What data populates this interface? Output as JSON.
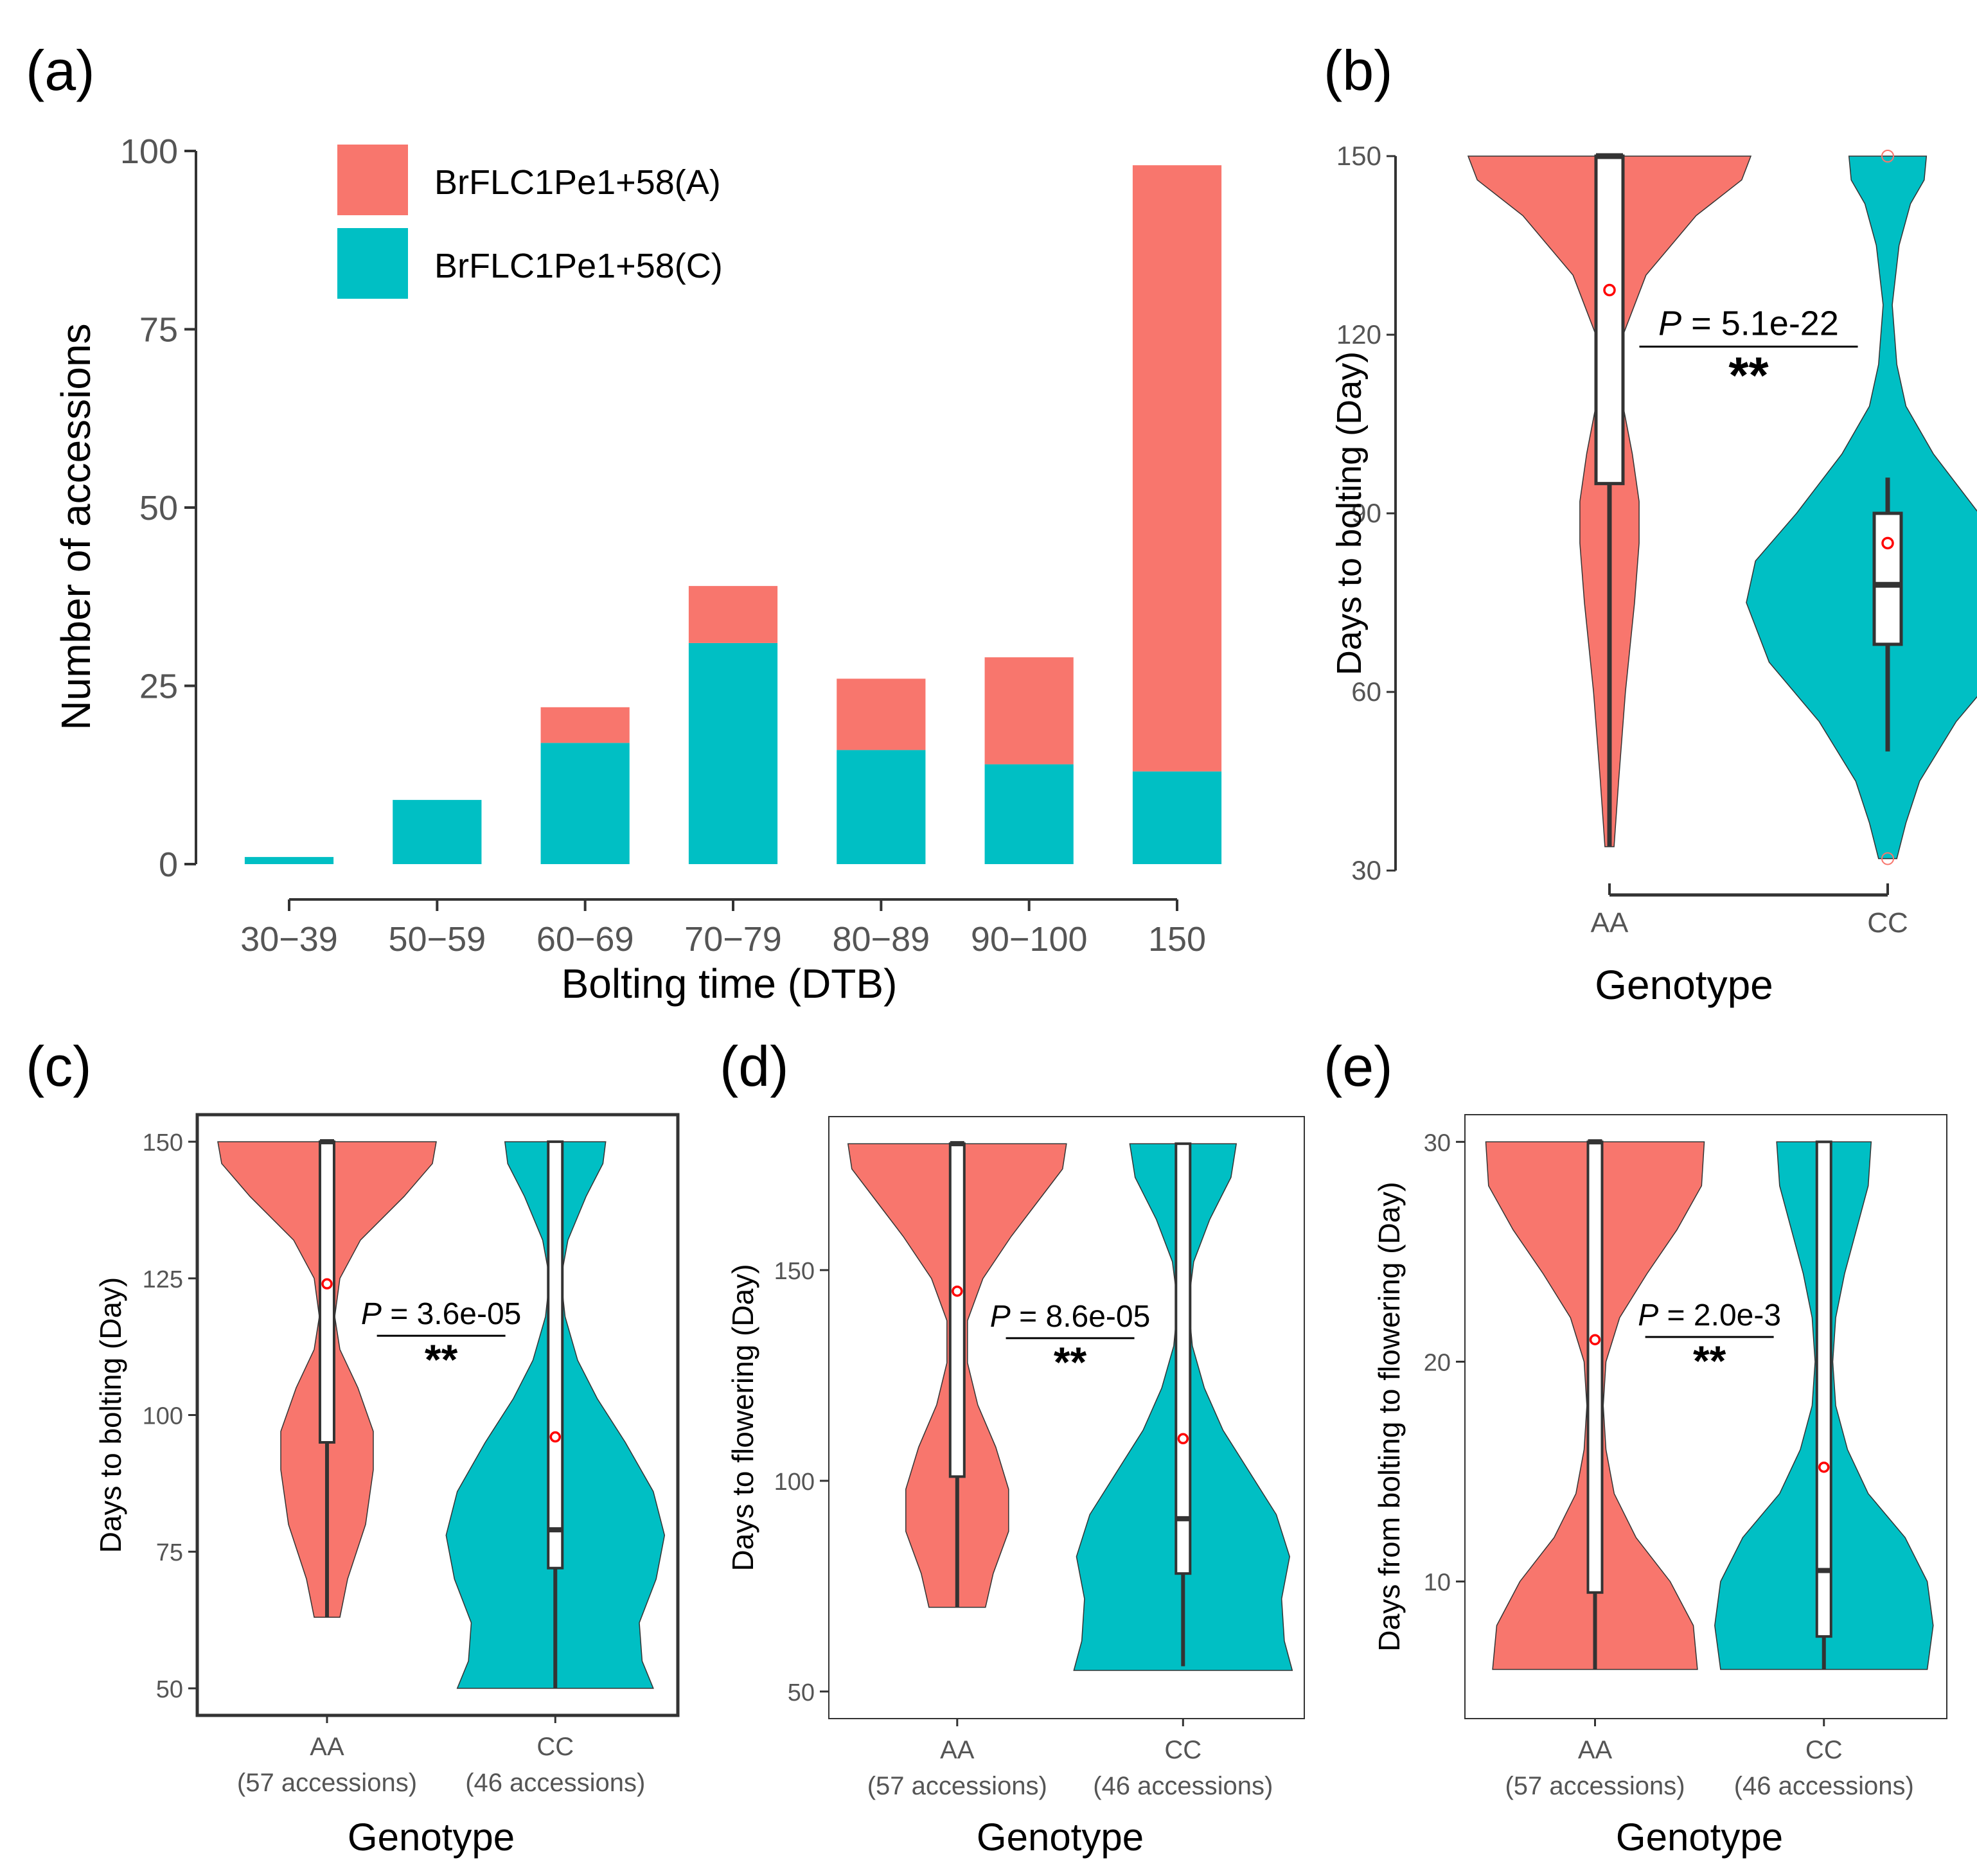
{
  "colors": {
    "A": "#F8766D",
    "C": "#00BFC4",
    "axis": "#333333",
    "tick": "#555555",
    "mean": "#FF0000"
  },
  "chart_data": [
    {
      "panel": "(a)",
      "type": "bar",
      "stacked": true,
      "xlabel": "Bolting time (DTB)",
      "ylabel": "Number of accessions",
      "ylim": [
        0,
        100
      ],
      "yticks": [
        0,
        25,
        50,
        75,
        100
      ],
      "categories": [
        "30−39",
        "50−59",
        "60−69",
        "70−79",
        "80−89",
        "90−100",
        "150"
      ],
      "series": [
        {
          "name": "BrFLC1Pe1+58(C)",
          "key": "C",
          "values": [
            1,
            9,
            17,
            31,
            16,
            14,
            13
          ]
        },
        {
          "name": "BrFLC1Pe1+58(A)",
          "key": "A",
          "values": [
            0,
            0,
            5,
            8,
            10,
            15,
            85
          ]
        }
      ],
      "legend_position": "top-left"
    },
    {
      "panel": "(b)",
      "type": "violin",
      "xlabel": "Genotype",
      "ylabel": "Days to bolting (Day)",
      "ylim": [
        30,
        150
      ],
      "yticks": [
        30,
        60,
        90,
        120,
        150
      ],
      "categories": [
        "AA",
        "CC"
      ],
      "groups": [
        {
          "name": "AA",
          "key": "A",
          "min": 34,
          "max": 150,
          "q1": 95,
          "median": 150,
          "q3": 150,
          "whisker_low": 34,
          "whisker_high": 150,
          "mean": 127.5,
          "density": [
            [
              34,
              0.02
            ],
            [
              45,
              0.04
            ],
            [
              60,
              0.07
            ],
            [
              75,
              0.11
            ],
            [
              85,
              0.13
            ],
            [
              92,
              0.13
            ],
            [
              100,
              0.1
            ],
            [
              110,
              0.05
            ],
            [
              120,
              0.06
            ],
            [
              130,
              0.16
            ],
            [
              140,
              0.38
            ],
            [
              146,
              0.58
            ],
            [
              150,
              0.62
            ]
          ]
        },
        {
          "name": "CC",
          "key": "C",
          "min": 32,
          "max": 150,
          "q1": 68,
          "median": 78,
          "q3": 90,
          "whisker_low": 50,
          "whisker_high": 96,
          "mean": 85,
          "outliers": [
            150,
            32
          ],
          "density": [
            [
              32,
              0.04
            ],
            [
              38,
              0.08
            ],
            [
              45,
              0.14
            ],
            [
              55,
              0.3
            ],
            [
              65,
              0.52
            ],
            [
              75,
              0.62
            ],
            [
              82,
              0.58
            ],
            [
              90,
              0.4
            ],
            [
              100,
              0.2
            ],
            [
              108,
              0.08
            ],
            [
              115,
              0.04
            ],
            [
              125,
              0.02
            ],
            [
              135,
              0.05
            ],
            [
              142,
              0.1
            ],
            [
              146,
              0.16
            ],
            [
              150,
              0.17
            ]
          ]
        }
      ],
      "p_value": "5.1e-22",
      "significance": "**",
      "p_label": "P"
    },
    {
      "panel": "(c)",
      "type": "violin",
      "xlabel": "Genotype",
      "ylabel": "Days to bolting (Day)",
      "ylim": [
        50,
        150
      ],
      "yticks": [
        50,
        75,
        100,
        125,
        150
      ],
      "categories": [
        "AA\n(57 accessions)",
        "CC\n(46 accessions)"
      ],
      "groups": [
        {
          "name": "AA",
          "key": "A",
          "min": 63,
          "max": 150,
          "q1": 95,
          "median": 150,
          "q3": 150,
          "whisker_low": 63,
          "whisker_high": 150,
          "mean": 124,
          "density": [
            [
              63,
              0.1
            ],
            [
              70,
              0.16
            ],
            [
              80,
              0.3
            ],
            [
              90,
              0.36
            ],
            [
              97,
              0.36
            ],
            [
              105,
              0.24
            ],
            [
              112,
              0.1
            ],
            [
              118,
              0.06
            ],
            [
              125,
              0.1
            ],
            [
              132,
              0.26
            ],
            [
              140,
              0.6
            ],
            [
              146,
              0.82
            ],
            [
              150,
              0.85
            ]
          ]
        },
        {
          "name": "CC",
          "key": "C",
          "min": 50,
          "max": 150,
          "q1": 72,
          "median": 79,
          "q3": 150,
          "whisker_low": 50,
          "whisker_high": 150,
          "mean": 96,
          "density": [
            [
              50,
              0.7
            ],
            [
              55,
              0.62
            ],
            [
              62,
              0.6
            ],
            [
              70,
              0.72
            ],
            [
              78,
              0.78
            ],
            [
              86,
              0.7
            ],
            [
              95,
              0.5
            ],
            [
              103,
              0.3
            ],
            [
              110,
              0.16
            ],
            [
              118,
              0.07
            ],
            [
              125,
              0.04
            ],
            [
              132,
              0.09
            ],
            [
              140,
              0.22
            ],
            [
              146,
              0.34
            ],
            [
              150,
              0.36
            ]
          ]
        }
      ],
      "p_value": "3.6e-05",
      "significance": "**",
      "p_label": "P"
    },
    {
      "panel": "(d)",
      "type": "violin",
      "xlabel": "Genotype",
      "ylabel": "Days to flowering (Day)",
      "ylim": [
        50,
        180
      ],
      "yticks": [
        50,
        100,
        150
      ],
      "categories": [
        "AA\n(57 accessions)",
        "CC\n(46 accessions)"
      ],
      "groups": [
        {
          "name": "AA",
          "key": "A",
          "min": 70,
          "max": 180,
          "q1": 101,
          "median": 180,
          "q3": 180,
          "whisker_low": 70,
          "whisker_high": 180,
          "mean": 145,
          "density": [
            [
              70,
              0.22
            ],
            [
              78,
              0.28
            ],
            [
              88,
              0.4
            ],
            [
              98,
              0.4
            ],
            [
              108,
              0.3
            ],
            [
              118,
              0.16
            ],
            [
              128,
              0.08
            ],
            [
              138,
              0.08
            ],
            [
              148,
              0.2
            ],
            [
              158,
              0.42
            ],
            [
              166,
              0.62
            ],
            [
              174,
              0.82
            ],
            [
              180,
              0.85
            ]
          ]
        },
        {
          "name": "CC",
          "key": "C",
          "min": 55,
          "max": 180,
          "q1": 78,
          "median": 91,
          "q3": 180,
          "whisker_low": 56,
          "whisker_high": 180,
          "mean": 110,
          "density": [
            [
              55,
              0.82
            ],
            [
              62,
              0.76
            ],
            [
              72,
              0.74
            ],
            [
              82,
              0.8
            ],
            [
              92,
              0.7
            ],
            [
              102,
              0.5
            ],
            [
              112,
              0.3
            ],
            [
              122,
              0.16
            ],
            [
              132,
              0.07
            ],
            [
              142,
              0.04
            ],
            [
              152,
              0.08
            ],
            [
              162,
              0.2
            ],
            [
              172,
              0.36
            ],
            [
              180,
              0.4
            ]
          ]
        }
      ],
      "p_value": "8.6e-05",
      "significance": "**",
      "p_label": "P"
    },
    {
      "panel": "(e)",
      "type": "violin",
      "xlabel": "Genotype",
      "ylabel": "Days from bolting to flowering (Day)",
      "ylim": [
        5,
        30
      ],
      "yticks": [
        10,
        20,
        30
      ],
      "categories": [
        "AA\n(57 accessions)",
        "CC\n(46 accessions)"
      ],
      "groups": [
        {
          "name": "AA",
          "key": "A",
          "min": 6,
          "max": 30,
          "q1": 9.5,
          "median": 30,
          "q3": 30,
          "whisker_low": 6,
          "whisker_high": 30,
          "mean": 21,
          "density": [
            [
              6,
              0.75
            ],
            [
              8,
              0.72
            ],
            [
              10,
              0.55
            ],
            [
              12,
              0.3
            ],
            [
              14,
              0.14
            ],
            [
              16,
              0.08
            ],
            [
              18,
              0.06
            ],
            [
              20,
              0.08
            ],
            [
              22,
              0.18
            ],
            [
              24,
              0.38
            ],
            [
              26,
              0.6
            ],
            [
              28,
              0.78
            ],
            [
              30,
              0.8
            ]
          ]
        },
        {
          "name": "CC",
          "key": "C",
          "min": 6,
          "max": 30,
          "q1": 7.5,
          "median": 10.5,
          "q3": 30,
          "whisker_low": 6,
          "whisker_high": 30,
          "mean": 15.2,
          "density": [
            [
              6,
              0.7
            ],
            [
              8,
              0.74
            ],
            [
              10,
              0.7
            ],
            [
              12,
              0.55
            ],
            [
              14,
              0.3
            ],
            [
              16,
              0.16
            ],
            [
              18,
              0.08
            ],
            [
              20,
              0.06
            ],
            [
              22,
              0.08
            ],
            [
              24,
              0.14
            ],
            [
              26,
              0.22
            ],
            [
              28,
              0.3
            ],
            [
              30,
              0.32
            ]
          ]
        }
      ],
      "p_value": "2.0e-3",
      "significance": "**",
      "p_label": "P"
    }
  ]
}
